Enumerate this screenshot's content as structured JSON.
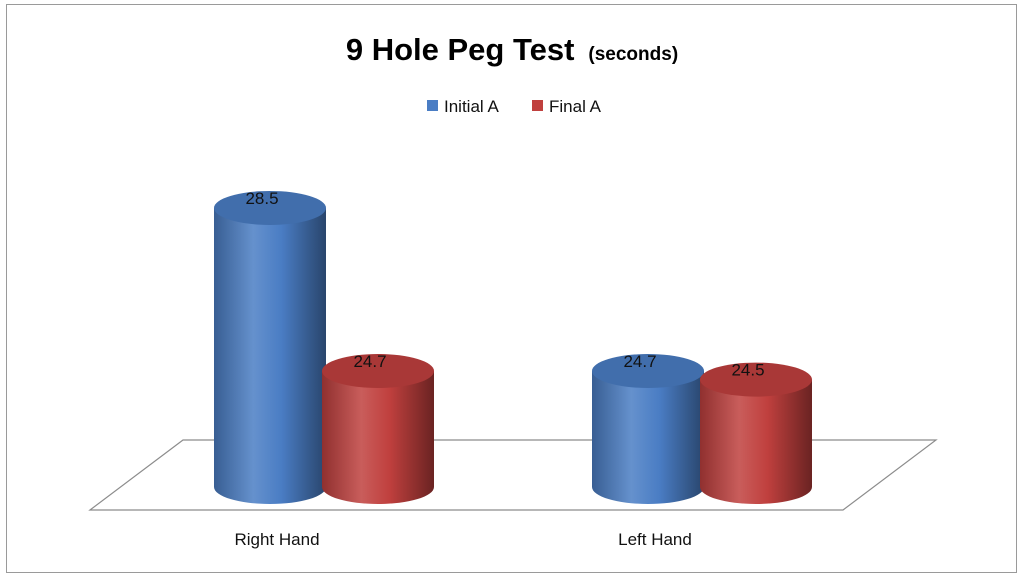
{
  "chart_data": {
    "type": "bar",
    "style": "3d-cylinder",
    "title": "9 Hole Peg Test",
    "subtitle": "(seconds)",
    "categories": [
      "Right Hand",
      "Left Hand"
    ],
    "series": [
      {
        "name": "Initial A",
        "color": "#4a7dc4",
        "values": [
          28.5,
          24.7
        ]
      },
      {
        "name": "Final A",
        "color": "#c0403e",
        "values": [
          24.7,
          24.5
        ]
      }
    ],
    "data_labels": [
      [
        "28.5",
        "24.7"
      ],
      [
        "24.7",
        "24.5"
      ]
    ],
    "legend_position": "top",
    "grid": false
  }
}
